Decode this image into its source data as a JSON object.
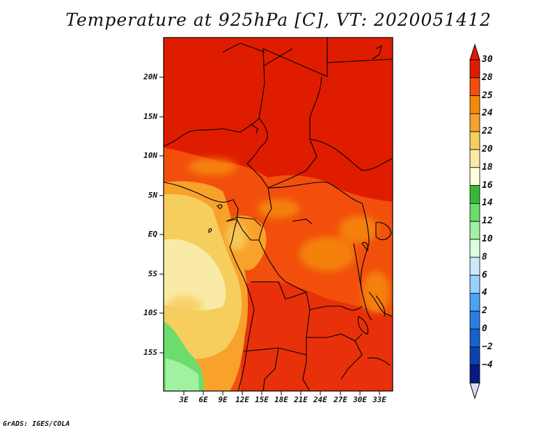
{
  "title": "Temperature at 925hPa [C], VT: 2020051412",
  "credit": "GrADS: IGES/COLA",
  "map": {
    "region": "Central Africa",
    "lat_labels": [
      "20N",
      "15N",
      "10N",
      "5N",
      "EQ",
      "5S",
      "10S",
      "15S"
    ],
    "lon_labels": [
      "3E",
      "6E",
      "9E",
      "12E",
      "15E",
      "18E",
      "21E",
      "24E",
      "27E",
      "30E",
      "33E"
    ]
  },
  "colorbar": {
    "labels": [
      "30",
      "28",
      "25",
      "24",
      "22",
      "20",
      "18",
      "16",
      "14",
      "12",
      "10",
      "8",
      "6",
      "4",
      "2",
      "0",
      "−2",
      "−4"
    ],
    "colors": [
      "#e01c00",
      "#f24f0c",
      "#f58a0b",
      "#f8a22b",
      "#f6ce5e",
      "#f9eba6",
      "#ffffdd",
      "#37b839",
      "#6cdc6c",
      "#a1f1a3",
      "#ddffe0",
      "#cce9fb",
      "#96d1fa",
      "#4fa1f2",
      "#2a7ee3",
      "#1761cd",
      "#0a43b0",
      "#071a86"
    ],
    "top_triangle": "#e01c00",
    "bottom_triangle": "#d9dcf5"
  }
}
